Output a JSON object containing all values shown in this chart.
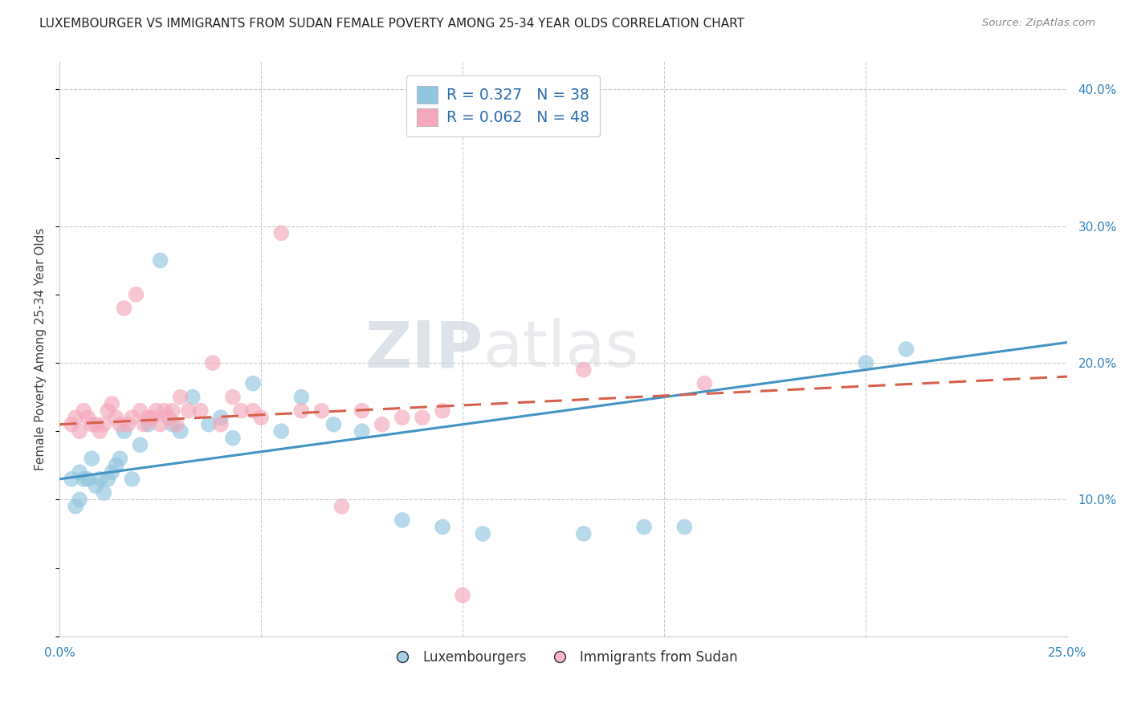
{
  "title": "LUXEMBOURGER VS IMMIGRANTS FROM SUDAN FEMALE POVERTY AMONG 25-34 YEAR OLDS CORRELATION CHART",
  "source": "Source: ZipAtlas.com",
  "ylabel": "Female Poverty Among 25-34 Year Olds",
  "xlim": [
    0.0,
    0.25
  ],
  "ylim": [
    0.0,
    0.42
  ],
  "xticks": [
    0.0,
    0.05,
    0.1,
    0.15,
    0.2,
    0.25
  ],
  "yticks_right": [
    0.1,
    0.2,
    0.3,
    0.4
  ],
  "ytick_labels_right": [
    "10.0%",
    "20.0%",
    "30.0%",
    "40.0%"
  ],
  "xtick_labels": [
    "0.0%",
    "",
    "",
    "",
    "",
    "25.0%"
  ],
  "R_blue": 0.327,
  "N_blue": 38,
  "R_pink": 0.062,
  "N_pink": 48,
  "legend_label_blue": "Luxembourgers",
  "legend_label_pink": "Immigrants from Sudan",
  "blue_color": "#92c5de",
  "pink_color": "#f4a8bc",
  "blue_line_color": "#4393c3",
  "pink_line_color": "#d6604d",
  "watermark": "ZIPatlas",
  "blue_x": [
    0.003,
    0.004,
    0.005,
    0.005,
    0.006,
    0.007,
    0.008,
    0.009,
    0.01,
    0.011,
    0.012,
    0.013,
    0.014,
    0.015,
    0.016,
    0.018,
    0.02,
    0.022,
    0.025,
    0.028,
    0.03,
    0.033,
    0.037,
    0.04,
    0.043,
    0.048,
    0.055,
    0.06,
    0.068,
    0.075,
    0.085,
    0.095,
    0.105,
    0.13,
    0.145,
    0.155,
    0.2,
    0.21
  ],
  "blue_y": [
    0.115,
    0.095,
    0.12,
    0.1,
    0.115,
    0.115,
    0.13,
    0.11,
    0.115,
    0.105,
    0.115,
    0.12,
    0.125,
    0.13,
    0.15,
    0.115,
    0.14,
    0.155,
    0.275,
    0.155,
    0.15,
    0.175,
    0.155,
    0.16,
    0.145,
    0.185,
    0.15,
    0.175,
    0.155,
    0.15,
    0.085,
    0.08,
    0.075,
    0.075,
    0.08,
    0.08,
    0.2,
    0.21
  ],
  "pink_x": [
    0.003,
    0.004,
    0.005,
    0.006,
    0.007,
    0.008,
    0.009,
    0.01,
    0.011,
    0.012,
    0.013,
    0.014,
    0.015,
    0.016,
    0.017,
    0.018,
    0.019,
    0.02,
    0.021,
    0.022,
    0.023,
    0.024,
    0.025,
    0.026,
    0.027,
    0.028,
    0.029,
    0.03,
    0.032,
    0.035,
    0.038,
    0.04,
    0.043,
    0.045,
    0.048,
    0.05,
    0.055,
    0.06,
    0.065,
    0.07,
    0.075,
    0.08,
    0.085,
    0.09,
    0.095,
    0.1,
    0.13,
    0.16
  ],
  "pink_y": [
    0.155,
    0.16,
    0.15,
    0.165,
    0.16,
    0.155,
    0.155,
    0.15,
    0.155,
    0.165,
    0.17,
    0.16,
    0.155,
    0.24,
    0.155,
    0.16,
    0.25,
    0.165,
    0.155,
    0.16,
    0.16,
    0.165,
    0.155,
    0.165,
    0.16,
    0.165,
    0.155,
    0.175,
    0.165,
    0.165,
    0.2,
    0.155,
    0.175,
    0.165,
    0.165,
    0.16,
    0.295,
    0.165,
    0.165,
    0.095,
    0.165,
    0.155,
    0.16,
    0.16,
    0.165,
    0.03,
    0.195,
    0.185
  ]
}
